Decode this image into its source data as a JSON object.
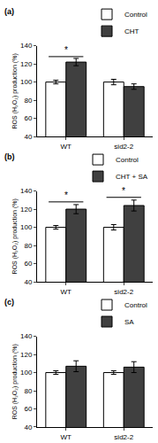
{
  "chart_data": [
    {
      "type": "bar",
      "title": "(a)",
      "categories": [
        "WT",
        "sid2-2"
      ],
      "series": [
        {
          "name": "Control",
          "color": "white",
          "values": [
            100,
            100
          ],
          "errors": [
            2,
            3
          ]
        },
        {
          "name": "CHT",
          "color": "#404040",
          "values": [
            122,
            95
          ],
          "errors": [
            4,
            3
          ]
        }
      ],
      "ylabel": "ROS (H₂O₂) production (%)",
      "ylim": [
        40,
        140
      ],
      "yticks": [
        40,
        60,
        80,
        100,
        120,
        140
      ],
      "annotations": [
        {
          "text": "*",
          "category": "WT",
          "y": 128
        }
      ],
      "legend": "upper right",
      "grid": false
    },
    {
      "type": "bar",
      "title": "(b)",
      "categories": [
        "WT",
        "sid2-2"
      ],
      "series": [
        {
          "name": "Control",
          "color": "white",
          "values": [
            100,
            100
          ],
          "errors": [
            2,
            3
          ]
        },
        {
          "name": "CHT + SA",
          "color": "#404040",
          "values": [
            120,
            124
          ],
          "errors": [
            5,
            6
          ]
        }
      ],
      "ylabel": "ROS (H₂O₂) production (%)",
      "ylim": [
        40,
        140
      ],
      "yticks": [
        40,
        60,
        80,
        100,
        120,
        140
      ],
      "annotations": [
        {
          "text": "*",
          "category": "WT",
          "y": 128
        },
        {
          "text": "*",
          "category": "sid2-2",
          "y": 133
        }
      ],
      "legend": "upper right",
      "grid": false
    },
    {
      "type": "bar",
      "title": "(c)",
      "categories": [
        "WT",
        "sid2-2"
      ],
      "series": [
        {
          "name": "Control",
          "color": "white",
          "values": [
            100,
            100
          ],
          "errors": [
            2,
            2
          ]
        },
        {
          "name": "SA",
          "color": "#404040",
          "values": [
            107,
            106
          ],
          "errors": [
            6,
            6
          ]
        }
      ],
      "ylabel": "ROS (H₂O₂) production (%)",
      "ylim": [
        40,
        140
      ],
      "yticks": [
        40,
        60,
        80,
        100,
        120,
        140
      ],
      "annotations": [],
      "legend": "upper right",
      "grid": false
    }
  ]
}
